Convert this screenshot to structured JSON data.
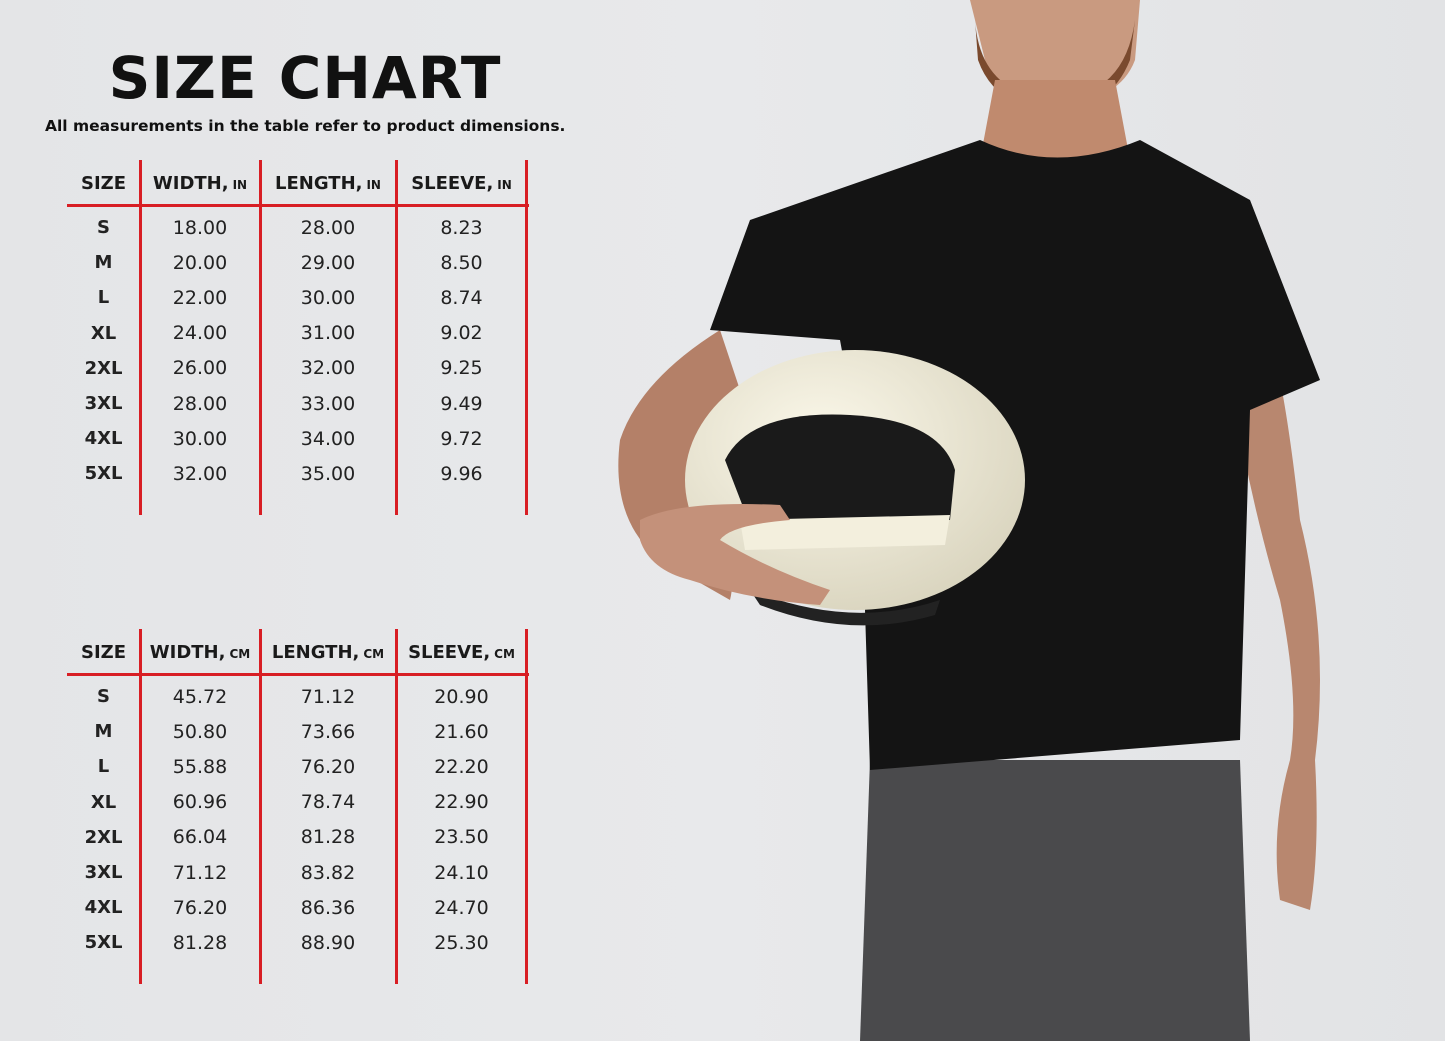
{
  "title": "SIZE CHART",
  "subtitle": "All measurements in the table refer to product dimensions.",
  "accent_color": "#d81e24",
  "tables": [
    {
      "headers": [
        {
          "label": "SIZE",
          "unit": ""
        },
        {
          "label": "WIDTH,",
          "unit": "IN"
        },
        {
          "label": "LENGTH,",
          "unit": "IN"
        },
        {
          "label": "SLEEVE,",
          "unit": "IN"
        }
      ],
      "rows": [
        [
          "S",
          "18.00",
          "28.00",
          "8.23"
        ],
        [
          "M",
          "20.00",
          "29.00",
          "8.50"
        ],
        [
          "L",
          "22.00",
          "30.00",
          "8.74"
        ],
        [
          "XL",
          "24.00",
          "31.00",
          "9.02"
        ],
        [
          "2XL",
          "26.00",
          "32.00",
          "9.25"
        ],
        [
          "3XL",
          "28.00",
          "33.00",
          "9.49"
        ],
        [
          "4XL",
          "30.00",
          "34.00",
          "9.72"
        ],
        [
          "5XL",
          "32.00",
          "35.00",
          "9.96"
        ]
      ]
    },
    {
      "headers": [
        {
          "label": "SIZE",
          "unit": ""
        },
        {
          "label": "WIDTH,",
          "unit": "CM"
        },
        {
          "label": "LENGTH,",
          "unit": "CM"
        },
        {
          "label": "SLEEVE,",
          "unit": "CM"
        }
      ],
      "rows": [
        [
          "S",
          "45.72",
          "71.12",
          "20.90"
        ],
        [
          "M",
          "50.80",
          "73.66",
          "21.60"
        ],
        [
          "L",
          "55.88",
          "76.20",
          "22.20"
        ],
        [
          "XL",
          "60.96",
          "78.74",
          "22.90"
        ],
        [
          "2XL",
          "66.04",
          "81.28",
          "23.50"
        ],
        [
          "3XL",
          "71.12",
          "83.82",
          "24.10"
        ],
        [
          "4XL",
          "76.20",
          "86.36",
          "24.70"
        ],
        [
          "5XL",
          "81.28",
          "88.90",
          "25.30"
        ]
      ]
    }
  ]
}
